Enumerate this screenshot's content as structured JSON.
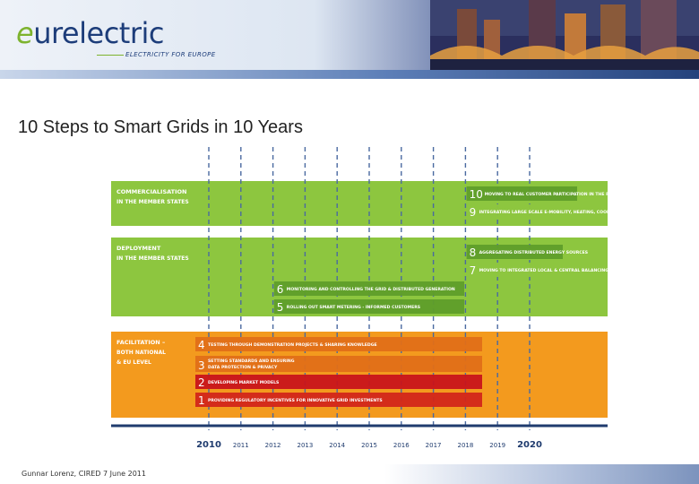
{
  "header": {
    "logo_prefix": "e",
    "logo_rest": "urelectric",
    "tagline": "ELECTRICITY FOR EUROPE"
  },
  "slide": {
    "title": "10 Steps to Smart Grids in 10 Years",
    "footer": "Gunnar Lorenz, CIRED 7 June 2011"
  },
  "colors": {
    "green": "#8dc63f",
    "orange": "#f39a1e",
    "navy": "#1f3b6e"
  },
  "diagram": {
    "phases": [
      {
        "heading": "COMMERCIALISATION",
        "subheading": "IN THE MEMBER STATES",
        "color": "#8dc63f"
      },
      {
        "heading": "DEPLOYMENT",
        "subheading": "IN THE MEMBER STATES",
        "color": "#8dc63f"
      },
      {
        "heading": "FACILITATION –",
        "subheading": "BOTH NATIONAL",
        "subheading2": "& EU LEVEL",
        "color": "#f39a1e"
      }
    ],
    "steps": [
      {
        "number": "10",
        "label": "MOVING TO REAL CUSTOMER PARTICIPATION IN THE POWER MARKET",
        "phase": "commercialisation",
        "start_year": 2017
      },
      {
        "number": "9",
        "label": "INTEGRATING LARGE SCALE E-MOBILITY, HEATING, COOLING AND STORAGE",
        "phase": "commercialisation",
        "start_year": 2017
      },
      {
        "number": "8",
        "label": "AGGREGATING DISTRIBUTED ENERGY SOURCES",
        "phase": "deployment",
        "start_year": 2017
      },
      {
        "number": "7",
        "label": "MOVING TO INTEGRATED LOCAL & CENTRAL BALANCING OF ALL GENERATION",
        "phase": "deployment",
        "start_year": 2017
      },
      {
        "number": "6",
        "label": "MONITORING AND CONTROLLING THE GRID & DISTRIBUTED GENERATION",
        "phase": "deployment",
        "start_year": 2011
      },
      {
        "number": "5",
        "label": "ROLLING OUT SMART METERING - INFORMED CUSTOMERS",
        "phase": "deployment",
        "start_year": 2011
      },
      {
        "number": "4",
        "label": "TESTING THROUGH DEMONSTRATION PROJECTS & SHARING KNOWLEDGE",
        "phase": "facilitation",
        "start_year": 2010
      },
      {
        "number": "3",
        "label": "SETTING STANDARDS AND ENSURING",
        "label2": "DATA PROTECTION & PRIVACY",
        "phase": "facilitation",
        "start_year": 2010
      },
      {
        "number": "2",
        "label": "DEVELOPING MARKET MODELS",
        "phase": "facilitation",
        "start_year": 2010
      },
      {
        "number": "1",
        "label": "PROVIDING REGULATORY INCENTIVES FOR INNOVATIVE GRID INVESTMENTS",
        "phase": "facilitation",
        "start_year": 2010
      }
    ],
    "years": [
      "2010",
      "2011",
      "2012",
      "2013",
      "2014",
      "2015",
      "2016",
      "2017",
      "2018",
      "2019",
      "2020"
    ]
  }
}
